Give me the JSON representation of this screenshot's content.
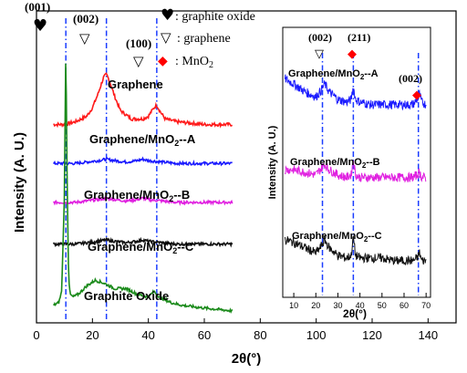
{
  "chart_data": [
    {
      "type": "line",
      "panel": "main",
      "xlabel": "2θ(°)",
      "ylabel": "Intensity (A. U.)",
      "xlim": [
        0,
        150
      ],
      "x_ticks": [
        0,
        20,
        40,
        60,
        80,
        100,
        120,
        140
      ],
      "x_tick_labels": [
        "0",
        "20",
        "40",
        "60",
        "80",
        "100",
        "120",
        "140"
      ],
      "series": [
        {
          "name": "Graphene",
          "color": "#ff1a1a",
          "x": [
            6,
            10,
            14,
            18,
            20,
            22,
            24,
            25,
            26,
            28,
            30,
            34,
            38,
            40,
            42,
            43,
            44,
            46,
            50,
            55,
            60,
            65,
            70
          ],
          "y": [
            0.7,
            0.7,
            0.71,
            0.73,
            0.76,
            0.81,
            0.87,
            0.88,
            0.86,
            0.8,
            0.75,
            0.72,
            0.72,
            0.73,
            0.76,
            0.77,
            0.75,
            0.72,
            0.71,
            0.705,
            0.7,
            0.7,
            0.7
          ]
        },
        {
          "name": "Graphene/MnO2--A",
          "color": "#1a1aff",
          "x": [
            6,
            10,
            14,
            18,
            22,
            25,
            28,
            32,
            36,
            38,
            40,
            45,
            50,
            55,
            60,
            65,
            70
          ],
          "y": [
            0.56,
            0.56,
            0.56,
            0.565,
            0.57,
            0.575,
            0.57,
            0.565,
            0.57,
            0.575,
            0.57,
            0.565,
            0.56,
            0.56,
            0.56,
            0.56,
            0.56
          ]
        },
        {
          "name": "Graphene/MnO2--B",
          "color": "#e020e0",
          "x": [
            6,
            10,
            14,
            18,
            22,
            25,
            28,
            32,
            36,
            38,
            40,
            45,
            50,
            55,
            60,
            65,
            70
          ],
          "y": [
            0.42,
            0.42,
            0.42,
            0.425,
            0.43,
            0.435,
            0.43,
            0.425,
            0.43,
            0.435,
            0.43,
            0.425,
            0.42,
            0.42,
            0.42,
            0.42,
            0.42
          ]
        },
        {
          "name": "Graphene/MnO2--C",
          "color": "#111111",
          "x": [
            6,
            10,
            14,
            18,
            22,
            25,
            28,
            32,
            36,
            38,
            40,
            45,
            50,
            55,
            60,
            65,
            70
          ],
          "y": [
            0.27,
            0.27,
            0.27,
            0.275,
            0.28,
            0.285,
            0.28,
            0.275,
            0.28,
            0.285,
            0.28,
            0.275,
            0.27,
            0.27,
            0.27,
            0.27,
            0.27
          ]
        },
        {
          "name": "Graphite Oxide",
          "color": "#1a8a1a",
          "x": [
            6,
            8,
            9,
            10,
            10.5,
            11,
            11.5,
            12,
            13,
            15,
            18,
            21,
            24,
            28,
            32,
            36,
            40,
            42,
            44,
            48,
            52,
            56,
            60,
            65,
            70
          ],
          "y": [
            0.05,
            0.06,
            0.1,
            0.45,
            1.0,
            0.45,
            0.15,
            0.09,
            0.08,
            0.09,
            0.12,
            0.14,
            0.13,
            0.11,
            0.11,
            0.09,
            0.08,
            0.1,
            0.08,
            0.06,
            0.05,
            0.045,
            0.04,
            0.035,
            0.03
          ]
        }
      ],
      "reference_lines_x": [
        10.5,
        25,
        43
      ],
      "annotations": [
        {
          "text": "(001)",
          "x": 10.5
        },
        {
          "text": "(002)",
          "x": 25
        },
        {
          "text": "(100)",
          "x": 43
        }
      ],
      "legend": [
        {
          "symbol": "♥",
          "label": ": graphite oxide",
          "color": "#000000"
        },
        {
          "symbol": "▽",
          "label": ": graphene",
          "color": "#000000"
        },
        {
          "symbol": "◆",
          "label": ":  MnO2",
          "color": "#ff0000"
        }
      ]
    },
    {
      "type": "line",
      "panel": "inset",
      "xlabel": "2θ(°)",
      "ylabel": "Intensity (A. U.)",
      "xlim": [
        5,
        72
      ],
      "x_ticks": [
        10,
        20,
        30,
        40,
        50,
        60,
        70
      ],
      "x_tick_labels": [
        "10",
        "20",
        "30",
        "40",
        "50",
        "60",
        "70"
      ],
      "series": [
        {
          "name": "Graphene/MnO2--A",
          "color": "#1a1aff",
          "x": [
            6,
            10,
            15,
            20,
            22,
            24,
            26,
            30,
            34,
            36,
            37,
            38,
            40,
            45,
            50,
            55,
            60,
            64,
            66,
            67,
            68,
            70
          ],
          "y": [
            0.82,
            0.8,
            0.77,
            0.75,
            0.77,
            0.8,
            0.77,
            0.74,
            0.73,
            0.74,
            0.79,
            0.74,
            0.73,
            0.72,
            0.72,
            0.72,
            0.72,
            0.72,
            0.74,
            0.76,
            0.73,
            0.72
          ]
        },
        {
          "name": "Graphene/MnO2--B",
          "color": "#e020e0",
          "x": [
            6,
            10,
            15,
            20,
            22,
            24,
            26,
            30,
            34,
            36,
            37,
            38,
            40,
            45,
            50,
            55,
            60,
            64,
            66,
            67,
            68,
            70
          ],
          "y": [
            0.47,
            0.47,
            0.46,
            0.45,
            0.47,
            0.49,
            0.47,
            0.45,
            0.44,
            0.45,
            0.51,
            0.45,
            0.44,
            0.44,
            0.44,
            0.44,
            0.44,
            0.44,
            0.45,
            0.46,
            0.44,
            0.44
          ]
        },
        {
          "name": "Graphene/MnO2--C",
          "color": "#111111",
          "x": [
            6,
            10,
            15,
            20,
            22,
            24,
            26,
            30,
            34,
            36,
            37,
            38,
            40,
            45,
            50,
            55,
            60,
            64,
            66,
            67,
            68,
            70
          ],
          "y": [
            0.2,
            0.19,
            0.17,
            0.15,
            0.17,
            0.2,
            0.17,
            0.14,
            0.13,
            0.14,
            0.21,
            0.14,
            0.13,
            0.13,
            0.13,
            0.12,
            0.12,
            0.12,
            0.13,
            0.15,
            0.12,
            0.12
          ]
        }
      ],
      "reference_lines_x": [
        23,
        37,
        66.5
      ],
      "annotations": [
        {
          "text": "(002)",
          "x": 23
        },
        {
          "text": "(211)",
          "x": 37
        },
        {
          "text": "(002)",
          "x": 66.5
        }
      ]
    }
  ]
}
